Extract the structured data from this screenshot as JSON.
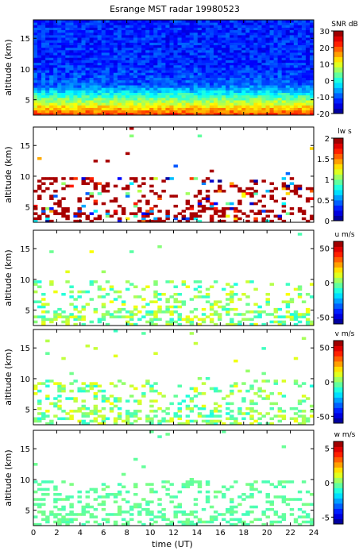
{
  "title": "Esrange MST radar 19980523",
  "chart_data": {
    "type": "heatmap",
    "x_label": "time (UT)",
    "x_range": [
      0,
      24
    ],
    "x_ticks": [
      0,
      2,
      4,
      6,
      8,
      10,
      12,
      14,
      16,
      18,
      20,
      22,
      24
    ],
    "y_label": "altitude (km)",
    "y_range": [
      2.5,
      18
    ],
    "y_ticks": [
      5,
      10,
      15
    ],
    "grid": false,
    "panels": [
      {
        "colorbar_label": "SNR dB",
        "clim": [
          -20,
          30
        ],
        "colorbar_ticks": [
          -20,
          -10,
          0,
          10,
          20,
          30
        ]
      },
      {
        "colorbar_label": "lw s",
        "clim": [
          0,
          2
        ],
        "colorbar_ticks": [
          0,
          0.5,
          1,
          1.5,
          2
        ]
      },
      {
        "colorbar_label": "u m/s",
        "clim": [
          -60,
          60
        ],
        "colorbar_ticks": [
          -50,
          0,
          50
        ]
      },
      {
        "colorbar_label": "v m/s",
        "clim": [
          -60,
          60
        ],
        "colorbar_ticks": [
          -50,
          0,
          50
        ]
      },
      {
        "colorbar_label": "w m/s",
        "clim": [
          -6,
          6
        ],
        "colorbar_ticks": [
          -5,
          0,
          5
        ]
      }
    ]
  }
}
